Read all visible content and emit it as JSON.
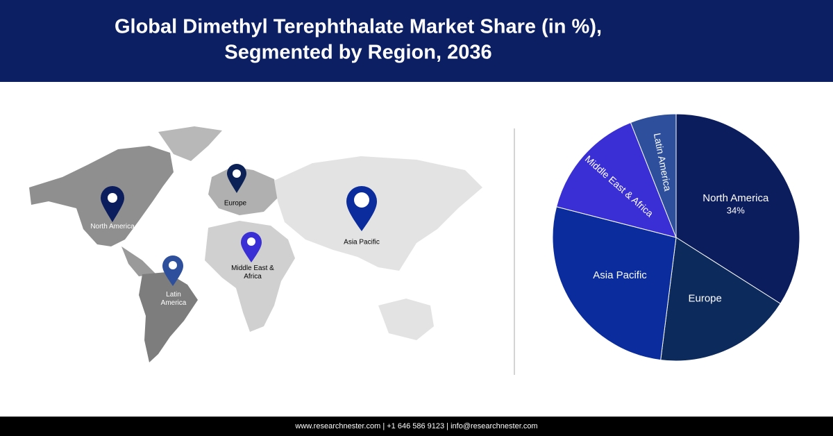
{
  "header": {
    "title_line1": "Global Dimethyl Terephthalate Market Share (in %),",
    "title_line2": "Segmented by Region, 2036"
  },
  "map": {
    "pins": [
      {
        "label": "North America"
      },
      {
        "label": "Europe"
      },
      {
        "label": "Asia Pacific"
      },
      {
        "label": "Middle East & Africa"
      },
      {
        "label": "Latin America"
      }
    ]
  },
  "chart_data": {
    "type": "pie",
    "categories": [
      "North America",
      "Europe",
      "Asia Pacific",
      "Middle East & Africa",
      "Latin America"
    ],
    "values": [
      34,
      18,
      27,
      15,
      6
    ],
    "value_labels": [
      "34%",
      null,
      null,
      null,
      null
    ],
    "colors": [
      "#0c1d5e",
      "#0c2a5c",
      "#0a2c9c",
      "#3a2fd4",
      "#2d4f9c"
    ]
  },
  "footer": {
    "text": "www.researchnester.com  |  +1 646 586 9123  |  info@researchnester.com"
  }
}
